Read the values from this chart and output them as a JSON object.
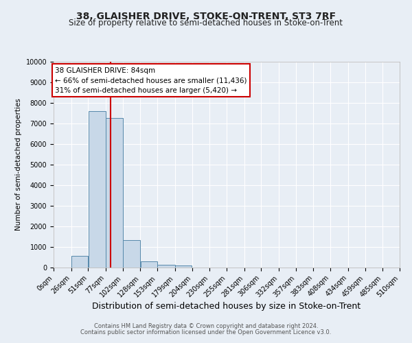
{
  "title": "38, GLAISHER DRIVE, STOKE-ON-TRENT, ST3 7RF",
  "subtitle": "Size of property relative to semi-detached houses in Stoke-on-Trent",
  "xlabel": "Distribution of semi-detached houses by size in Stoke-on-Trent",
  "ylabel": "Number of semi-detached properties",
  "footnote1": "Contains HM Land Registry data © Crown copyright and database right 2024.",
  "footnote2": "Contains public sector information licensed under the Open Government Licence v3.0.",
  "bins": [
    0,
    26,
    51,
    77,
    102,
    128,
    153,
    179,
    204,
    230,
    255,
    281,
    306,
    332,
    357,
    383,
    408,
    434,
    459,
    485,
    510
  ],
  "bin_labels": [
    "0sqm",
    "26sqm",
    "51sqm",
    "77sqm",
    "102sqm",
    "128sqm",
    "153sqm",
    "179sqm",
    "204sqm",
    "230sqm",
    "255sqm",
    "281sqm",
    "306sqm",
    "332sqm",
    "357sqm",
    "383sqm",
    "408sqm",
    "434sqm",
    "459sqm",
    "485sqm",
    "510sqm"
  ],
  "values": [
    0,
    570,
    7600,
    7250,
    1350,
    310,
    130,
    90,
    0,
    0,
    0,
    0,
    0,
    0,
    0,
    0,
    0,
    0,
    0,
    0
  ],
  "bar_color": "#c8d8e8",
  "bar_edge_color": "#5588aa",
  "property_size": 84,
  "red_line_x": 84,
  "ylim": [
    0,
    10000
  ],
  "yticks": [
    0,
    1000,
    2000,
    3000,
    4000,
    5000,
    6000,
    7000,
    8000,
    9000,
    10000
  ],
  "annotation_title": "38 GLAISHER DRIVE: 84sqm",
  "annotation_line1": "← 66% of semi-detached houses are smaller (11,436)",
  "annotation_line2": "31% of semi-detached houses are larger (5,420) →",
  "annotation_box_color": "#ffffff",
  "annotation_border_color": "#cc0000",
  "red_line_color": "#cc0000",
  "background_color": "#e8eef5",
  "plot_background_color": "#e8eef5",
  "grid_color": "#ffffff",
  "title_fontsize": 10,
  "subtitle_fontsize": 8.5,
  "xlabel_fontsize": 9,
  "ylabel_fontsize": 7.5,
  "tick_fontsize": 7,
  "annot_fontsize": 7.5,
  "footnote_fontsize": 6
}
